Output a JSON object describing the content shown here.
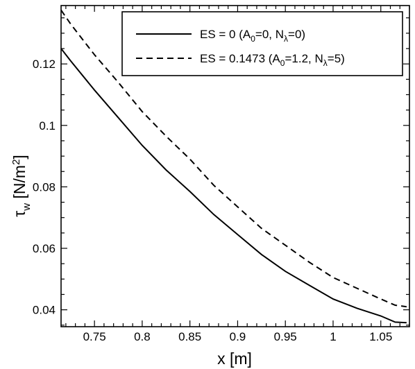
{
  "chart_data": {
    "type": "line",
    "xlabel": "x [m]",
    "ylabel": {
      "symbol": "τ",
      "sub": "w",
      "unit_open": " [N/m",
      "unit_sup": "2",
      "unit_close": "]"
    },
    "xlim": [
      0.715,
      1.08
    ],
    "ylim": [
      0.0345,
      0.139
    ],
    "x_ticks": [
      {
        "value": 0.75,
        "label": "0.75"
      },
      {
        "value": 0.8,
        "label": "0.8"
      },
      {
        "value": 0.85,
        "label": "0.85"
      },
      {
        "value": 0.9,
        "label": "0.9"
      },
      {
        "value": 0.95,
        "label": "0.95"
      },
      {
        "value": 1.0,
        "label": "1"
      },
      {
        "value": 1.05,
        "label": "1.05"
      }
    ],
    "y_ticks": [
      {
        "value": 0.04,
        "label": "0.04"
      },
      {
        "value": 0.06,
        "label": "0.06"
      },
      {
        "value": 0.08,
        "label": "0.08"
      },
      {
        "value": 0.1,
        "label": "0.1"
      },
      {
        "value": 0.12,
        "label": "0.12"
      }
    ],
    "grid": false,
    "legend_position": "top-right",
    "series": [
      {
        "legend": [
          {
            "t": "ES = 0 (A"
          },
          {
            "t": "0",
            "sub": true
          },
          {
            "t": "=0, N"
          },
          {
            "t": "λ",
            "sub": true
          },
          {
            "t": "=0)"
          }
        ],
        "style": "solid",
        "x": [
          0.715,
          0.725,
          0.75,
          0.775,
          0.8,
          0.825,
          0.85,
          0.875,
          0.9,
          0.925,
          0.95,
          0.975,
          1.0,
          1.025,
          1.05,
          1.065,
          1.077
        ],
        "y": [
          0.125,
          0.121,
          0.1115,
          0.1025,
          0.0935,
          0.0855,
          0.0785,
          0.071,
          0.0645,
          0.058,
          0.0525,
          0.048,
          0.0435,
          0.0405,
          0.038,
          0.036,
          0.0358
        ]
      },
      {
        "legend": [
          {
            "t": "ES = 0.1473 (A"
          },
          {
            "t": "0",
            "sub": true
          },
          {
            "t": "=1.2, N"
          },
          {
            "t": "λ",
            "sub": true
          },
          {
            "t": "=5)"
          }
        ],
        "style": "dashed",
        "x": [
          0.715,
          0.725,
          0.75,
          0.775,
          0.8,
          0.825,
          0.85,
          0.875,
          0.9,
          0.925,
          0.95,
          0.975,
          1.0,
          1.025,
          1.05,
          1.065,
          1.077
        ],
        "y": [
          0.1375,
          0.133,
          0.123,
          0.114,
          0.1045,
          0.0965,
          0.089,
          0.0805,
          0.0735,
          0.0665,
          0.061,
          0.0555,
          0.0505,
          0.047,
          0.0435,
          0.0415,
          0.041
        ]
      }
    ]
  }
}
